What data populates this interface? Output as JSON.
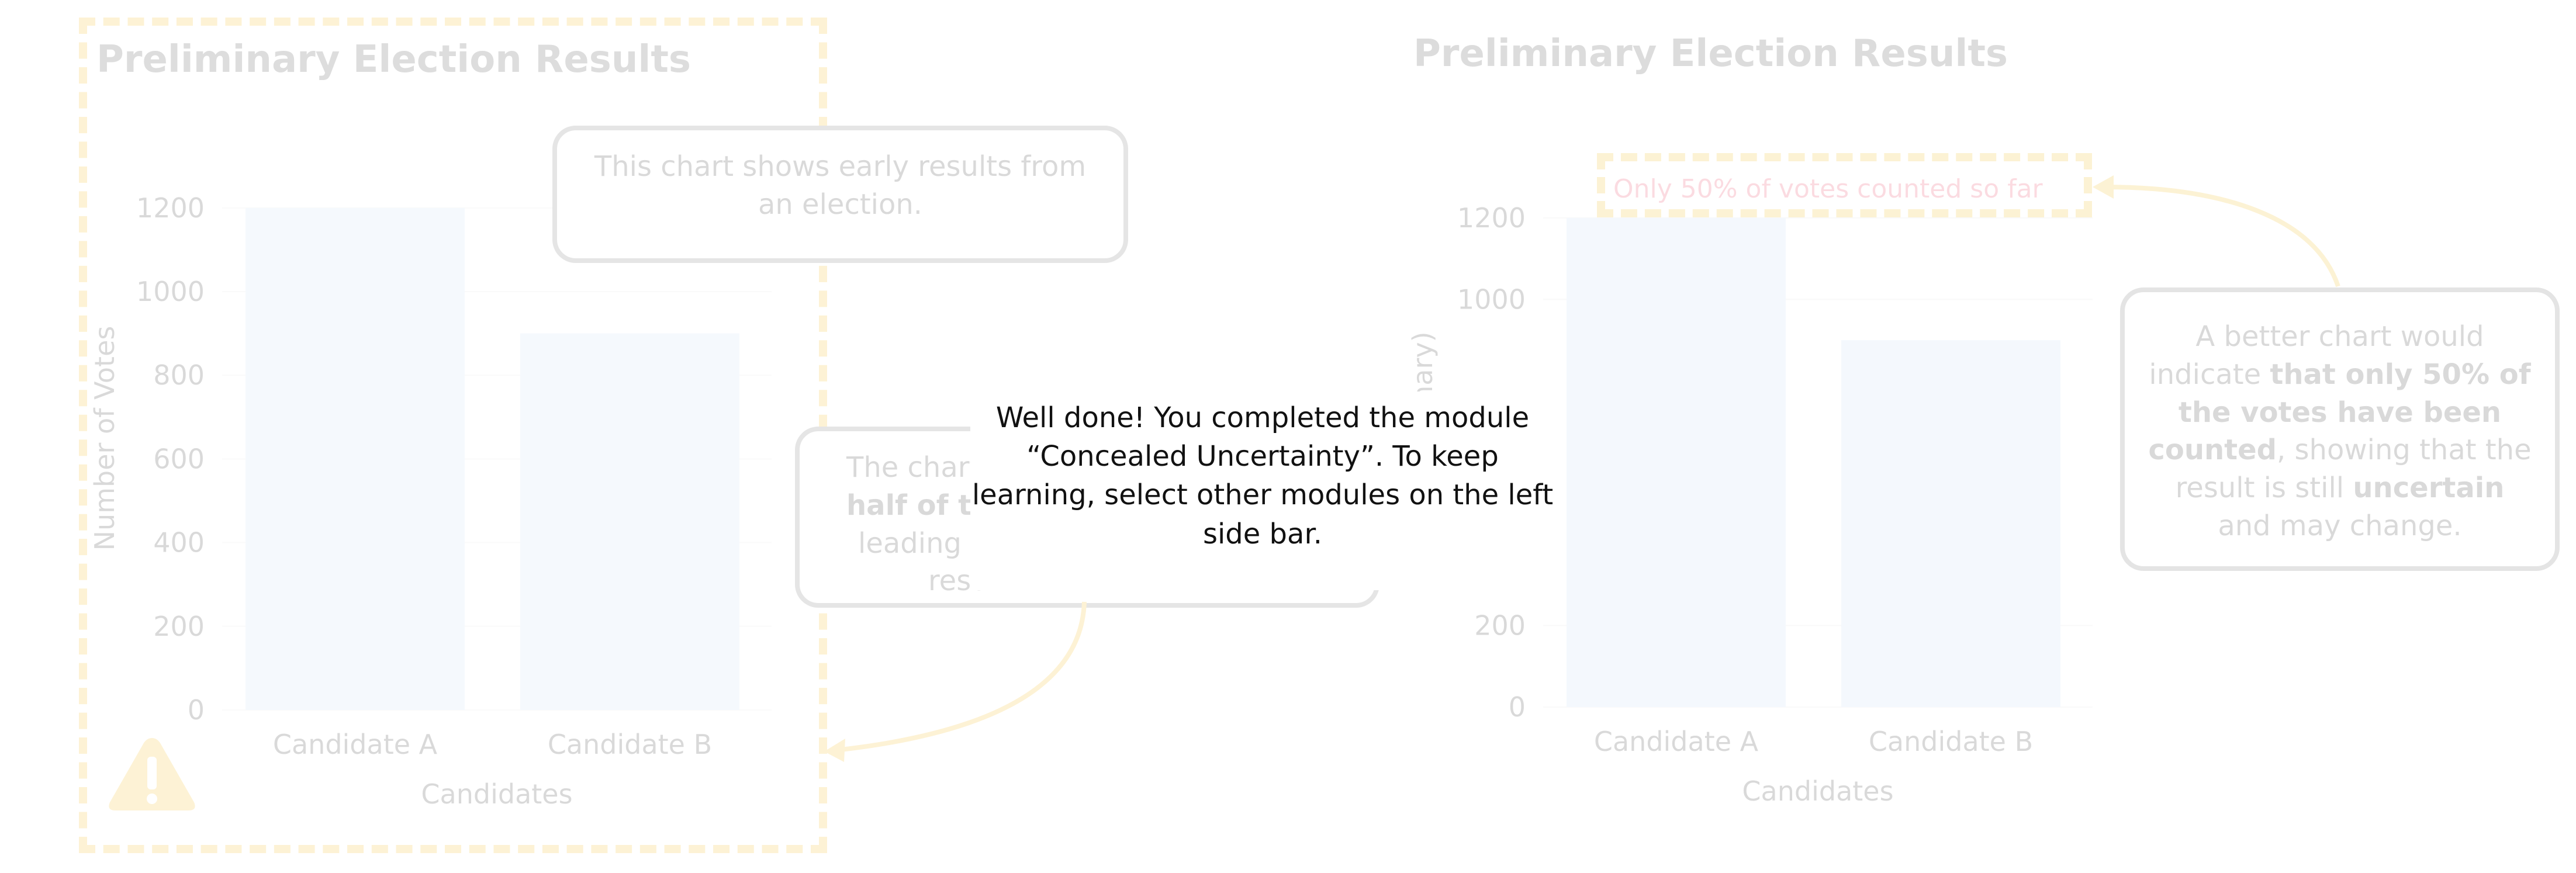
{
  "left_panel": {
    "title": "Preliminary Election Results",
    "callout_top": "This chart shows early results from an election.",
    "callout_mid_visible": "The chart half of th leading v resu",
    "callout_mid_line1": "The chart",
    "callout_mid_line2_bold": "half of th",
    "callout_mid_line3": "leading v",
    "callout_mid_line4": "resu",
    "warning_icon": "warning-triangle-icon"
  },
  "right_panel": {
    "title": "Preliminary Election Results",
    "note_label": "Only 50% of votes counted so far",
    "callout_parts": {
      "p1": "A better chart would indicate ",
      "b1": "that only 50% of the votes have been counted",
      "p2": ", showing that the result is still ",
      "b2": "uncertain",
      "p3": " and may change."
    }
  },
  "modal": {
    "message": "Well done! You completed the module “Concealed Uncertainty”. To keep learning, select other modules on the left side bar."
  },
  "colors": {
    "bar": "#cfe2f7",
    "highlight_dash": "#f5c542",
    "note_text": "#f0607a",
    "arrow": "#f5c542"
  },
  "chart_data": [
    {
      "type": "bar",
      "title": "Preliminary Election Results",
      "categories": [
        "Candidate A",
        "Candidate B"
      ],
      "values": [
        1200,
        900
      ],
      "xlabel": "Candidates",
      "ylabel": "Number of Votes",
      "yticks": [
        0,
        200,
        400,
        600,
        800,
        1000,
        1200
      ],
      "ylim": [
        0,
        1250
      ]
    },
    {
      "type": "bar",
      "title": "Preliminary Election Results",
      "categories": [
        "Candidate A",
        "Candidate B"
      ],
      "values": [
        1200,
        900
      ],
      "xlabel": "Candidates",
      "ylabel": "Nu…(Preliminary)",
      "yticks": [
        0,
        200,
        1000,
        1200
      ],
      "ylim": [
        0,
        1250
      ]
    }
  ]
}
